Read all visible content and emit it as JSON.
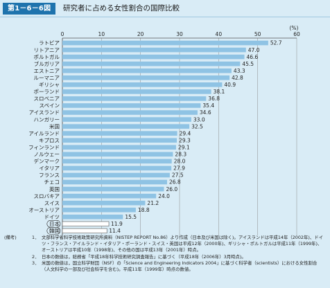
{
  "header": {
    "figure_number": "第1－6－6図",
    "title": "研究者に占める女性割合の国際比較"
  },
  "chart_data": {
    "type": "bar",
    "orientation": "horizontal",
    "unit_label": "(%)",
    "xlim": [
      0,
      60
    ],
    "ticks": [
      "0",
      "10",
      "20",
      "30",
      "40",
      "50",
      "60"
    ],
    "tick_values": [
      0,
      10,
      20,
      30,
      40,
      50,
      60
    ],
    "grid": true,
    "bar_color": "#8fc3e4",
    "highlight_color": "#ffffff",
    "categories": [
      "ラトビア",
      "リトアニア",
      "ポルトガル",
      "ブルガリア",
      "エストニア",
      "ルーマニア",
      "ギリシャ",
      "ポーランド",
      "スロベニア",
      "スペイン",
      "アイスランド",
      "ハンガリー",
      "米国",
      "アイルランド",
      "キプロス",
      "フィンランド",
      "ノルウェー",
      "デンマーク",
      "イタリア",
      "フランス",
      "チェコ",
      "英国",
      "スロバキア",
      "スイス",
      "オーストリア",
      "ドイツ",
      "日本",
      "韓国"
    ],
    "values": [
      52.7,
      47.0,
      46.6,
      45.5,
      43.3,
      42.8,
      40.9,
      38.1,
      36.8,
      35.4,
      34.6,
      33.0,
      32.5,
      29.4,
      29.3,
      29.1,
      28.3,
      28.0,
      27.9,
      27.5,
      26.8,
      26.0,
      24.0,
      21.2,
      18.8,
      15.5,
      11.9,
      11.4
    ],
    "value_labels": [
      "52.7",
      "47.0",
      "46.6",
      "45.5",
      "43.3",
      "42.8",
      "40.9",
      "38.1",
      "36.8",
      "35.4",
      "34.6",
      "33.0",
      "32.5",
      "29.4",
      "29.3",
      "29.1",
      "28.3",
      "28.0",
      "27.9",
      "27.5",
      "26.8",
      "26.0",
      "24.0",
      "21.2",
      "18.8",
      "15.5",
      "11.9",
      "11.4"
    ],
    "highlighted": [
      "日本",
      "韓国"
    ]
  },
  "notes": {
    "head": "(備考)",
    "items": [
      {
        "num": "1．",
        "text": "文部科学省科学技術政策研究所資料（NISTEP REPORT No.86）より作成（日本及び米国は除く)。アイスランドは平成14年（2002年)、ドイツ・フランス・アイルランド・イタリア・ポーランド・スイス・英国は平成12年（2000年)、ギリシャ・ポルトガルは平成11年（1999年)、オーストリアは平成10年（1998年)、その他の国は平成13年（2001年）時点。"
      },
      {
        "num": "2．",
        "text": "日本の数値は，総務省「平成18年科学技術研究調査報告」に基づく（平成18年（2006年）3月時点)。"
      },
      {
        "num": "3．",
        "text": "米国の数値は，国立科学財団（NSF）の「Science and Engineering Indicators 2004」に基づく科学者（scientists）における女性割合（人文科学の一部及び社会科学を含む)。平成11年（1999年）時点の数値。"
      }
    ]
  }
}
